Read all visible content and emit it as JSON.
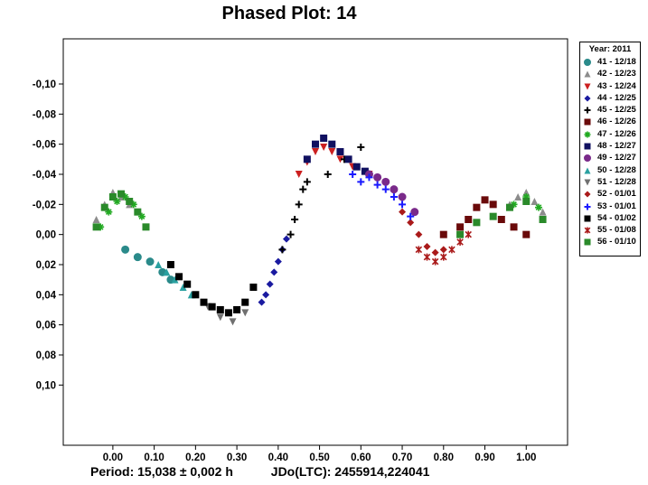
{
  "chart_data": {
    "type": "scatter",
    "title": "Phased Plot: 14",
    "xlim": [
      -0.12,
      1.1
    ],
    "ylim": [
      0.14,
      -0.13
    ],
    "y_inverted": true,
    "x_ticks": [
      "0,00",
      "0,10",
      "0,20",
      "0,30",
      "0,40",
      "0,50",
      "0,60",
      "0,70",
      "0,80",
      "0,90",
      "1,00"
    ],
    "x_tick_values": [
      0.0,
      0.1,
      0.2,
      0.3,
      0.4,
      0.5,
      0.6,
      0.7,
      0.8,
      0.9,
      1.0
    ],
    "y_ticks": [
      "-0,10",
      "-0,08",
      "-0,06",
      "-0,04",
      "-0,02",
      "0,00",
      "0,02",
      "0,04",
      "0,06",
      "0,08",
      "0,10"
    ],
    "y_tick_values": [
      -0.1,
      -0.08,
      -0.06,
      -0.04,
      -0.02,
      0.0,
      0.02,
      0.04,
      0.06,
      0.08,
      0.1
    ],
    "legend_title": "Year: 2011",
    "legend_position": "right",
    "series": [
      {
        "name": "41 - 12/18",
        "marker": "circle",
        "color": "#2a8a8a",
        "x": [
          0.03,
          0.06,
          0.09,
          0.12,
          0.14
        ],
        "y": [
          0.01,
          0.015,
          0.018,
          0.025,
          0.03
        ]
      },
      {
        "name": "42 - 12/23",
        "marker": "triangle",
        "color": "#8c8c8c",
        "x": [
          -0.04,
          -0.02,
          0.0,
          0.02,
          0.04,
          0.96,
          0.98,
          1.0,
          1.02,
          1.04
        ],
        "y": [
          -0.01,
          -0.02,
          -0.028,
          -0.025,
          -0.02,
          -0.02,
          -0.025,
          -0.028,
          -0.022,
          -0.015
        ]
      },
      {
        "name": "43 - 12/24",
        "marker": "triangle-down",
        "color": "#cc2020",
        "x": [
          0.45,
          0.47,
          0.49,
          0.51,
          0.53,
          0.55,
          0.58,
          0.62
        ],
        "y": [
          -0.04,
          -0.048,
          -0.055,
          -0.058,
          -0.055,
          -0.05,
          -0.045,
          -0.04
        ]
      },
      {
        "name": "44 - 12/25",
        "marker": "diamond",
        "color": "#1a1aa0",
        "x": [
          0.36,
          0.37,
          0.38,
          0.39,
          0.4,
          0.41,
          0.42
        ],
        "y": [
          0.045,
          0.04,
          0.033,
          0.025,
          0.018,
          0.01,
          0.003
        ]
      },
      {
        "name": "45 - 12/25",
        "marker": "plus",
        "color": "#000000",
        "x": [
          0.41,
          0.43,
          0.44,
          0.45,
          0.46,
          0.47,
          0.52,
          0.56,
          0.6
        ],
        "y": [
          0.01,
          0.0,
          -0.01,
          -0.02,
          -0.03,
          -0.035,
          -0.04,
          -0.05,
          -0.058
        ]
      },
      {
        "name": "46 - 12/26",
        "marker": "square",
        "color": "#6a0a0a",
        "x": [
          0.8,
          0.84,
          0.86,
          0.88,
          0.9,
          0.92,
          0.94,
          0.97,
          1.0
        ],
        "y": [
          0.0,
          -0.005,
          -0.01,
          -0.018,
          -0.023,
          -0.02,
          -0.01,
          -0.005,
          0.0
        ]
      },
      {
        "name": "47 - 12/26",
        "marker": "star",
        "color": "#22aa22",
        "x": [
          -0.03,
          -0.01,
          0.01,
          0.03,
          0.05,
          0.07,
          0.97,
          1.0,
          1.03
        ],
        "y": [
          -0.005,
          -0.015,
          -0.022,
          -0.025,
          -0.02,
          -0.012,
          -0.02,
          -0.025,
          -0.018
        ]
      },
      {
        "name": "48 - 12/27",
        "marker": "square",
        "color": "#101060",
        "x": [
          0.47,
          0.49,
          0.51,
          0.53,
          0.55,
          0.57,
          0.59,
          0.61
        ],
        "y": [
          -0.05,
          -0.06,
          -0.064,
          -0.06,
          -0.055,
          -0.05,
          -0.045,
          -0.042
        ]
      },
      {
        "name": "49 - 12/27",
        "marker": "circle",
        "color": "#7a2a8a",
        "x": [
          0.62,
          0.64,
          0.66,
          0.68,
          0.7,
          0.73
        ],
        "y": [
          -0.04,
          -0.038,
          -0.035,
          -0.03,
          -0.025,
          -0.015
        ]
      },
      {
        "name": "50 - 12/28",
        "marker": "triangle",
        "color": "#2aa0a0",
        "x": [
          0.11,
          0.13,
          0.15,
          0.17,
          0.19
        ],
        "y": [
          0.02,
          0.025,
          0.03,
          0.035,
          0.04
        ]
      },
      {
        "name": "51 - 12/28",
        "marker": "triangle-down",
        "color": "#707070",
        "x": [
          0.2,
          0.23,
          0.26,
          0.29,
          0.32
        ],
        "y": [
          0.04,
          0.048,
          0.055,
          0.058,
          0.052
        ]
      },
      {
        "name": "52 - 01/01",
        "marker": "diamond",
        "color": "#aa1a1a",
        "x": [
          0.7,
          0.72,
          0.74,
          0.76,
          0.78,
          0.8
        ],
        "y": [
          -0.015,
          -0.008,
          0.0,
          0.008,
          0.012,
          0.01
        ]
      },
      {
        "name": "53 - 01/01",
        "marker": "plus",
        "color": "#1a1aff",
        "x": [
          0.58,
          0.6,
          0.62,
          0.64,
          0.66,
          0.68,
          0.7,
          0.72
        ],
        "y": [
          -0.04,
          -0.035,
          -0.038,
          -0.033,
          -0.03,
          -0.025,
          -0.02,
          -0.012
        ]
      },
      {
        "name": "54 - 01/02",
        "marker": "square",
        "color": "#000000",
        "x": [
          0.14,
          0.16,
          0.18,
          0.2,
          0.22,
          0.24,
          0.26,
          0.28,
          0.3,
          0.32,
          0.34
        ],
        "y": [
          0.02,
          0.028,
          0.033,
          0.04,
          0.045,
          0.048,
          0.05,
          0.052,
          0.05,
          0.045,
          0.035
        ]
      },
      {
        "name": "55 - 01/08",
        "marker": "asterisk",
        "color": "#aa1a1a",
        "x": [
          0.74,
          0.76,
          0.78,
          0.8,
          0.82,
          0.84,
          0.86
        ],
        "y": [
          0.01,
          0.015,
          0.018,
          0.015,
          0.01,
          0.005,
          0.0
        ]
      },
      {
        "name": "56 - 01/10",
        "marker": "square",
        "color": "#2a8a2a",
        "x": [
          -0.04,
          -0.02,
          0.0,
          0.02,
          0.04,
          0.06,
          0.08,
          0.84,
          0.88,
          0.92,
          0.96,
          1.0,
          1.04
        ],
        "y": [
          -0.005,
          -0.018,
          -0.025,
          -0.027,
          -0.022,
          -0.015,
          -0.005,
          0.0,
          -0.008,
          -0.012,
          -0.018,
          -0.022,
          -0.01
        ]
      }
    ],
    "footer_period": "Period: 15,038 ± 0,002 h",
    "footer_jd": "JDo(LTC): 2455914,224041"
  }
}
